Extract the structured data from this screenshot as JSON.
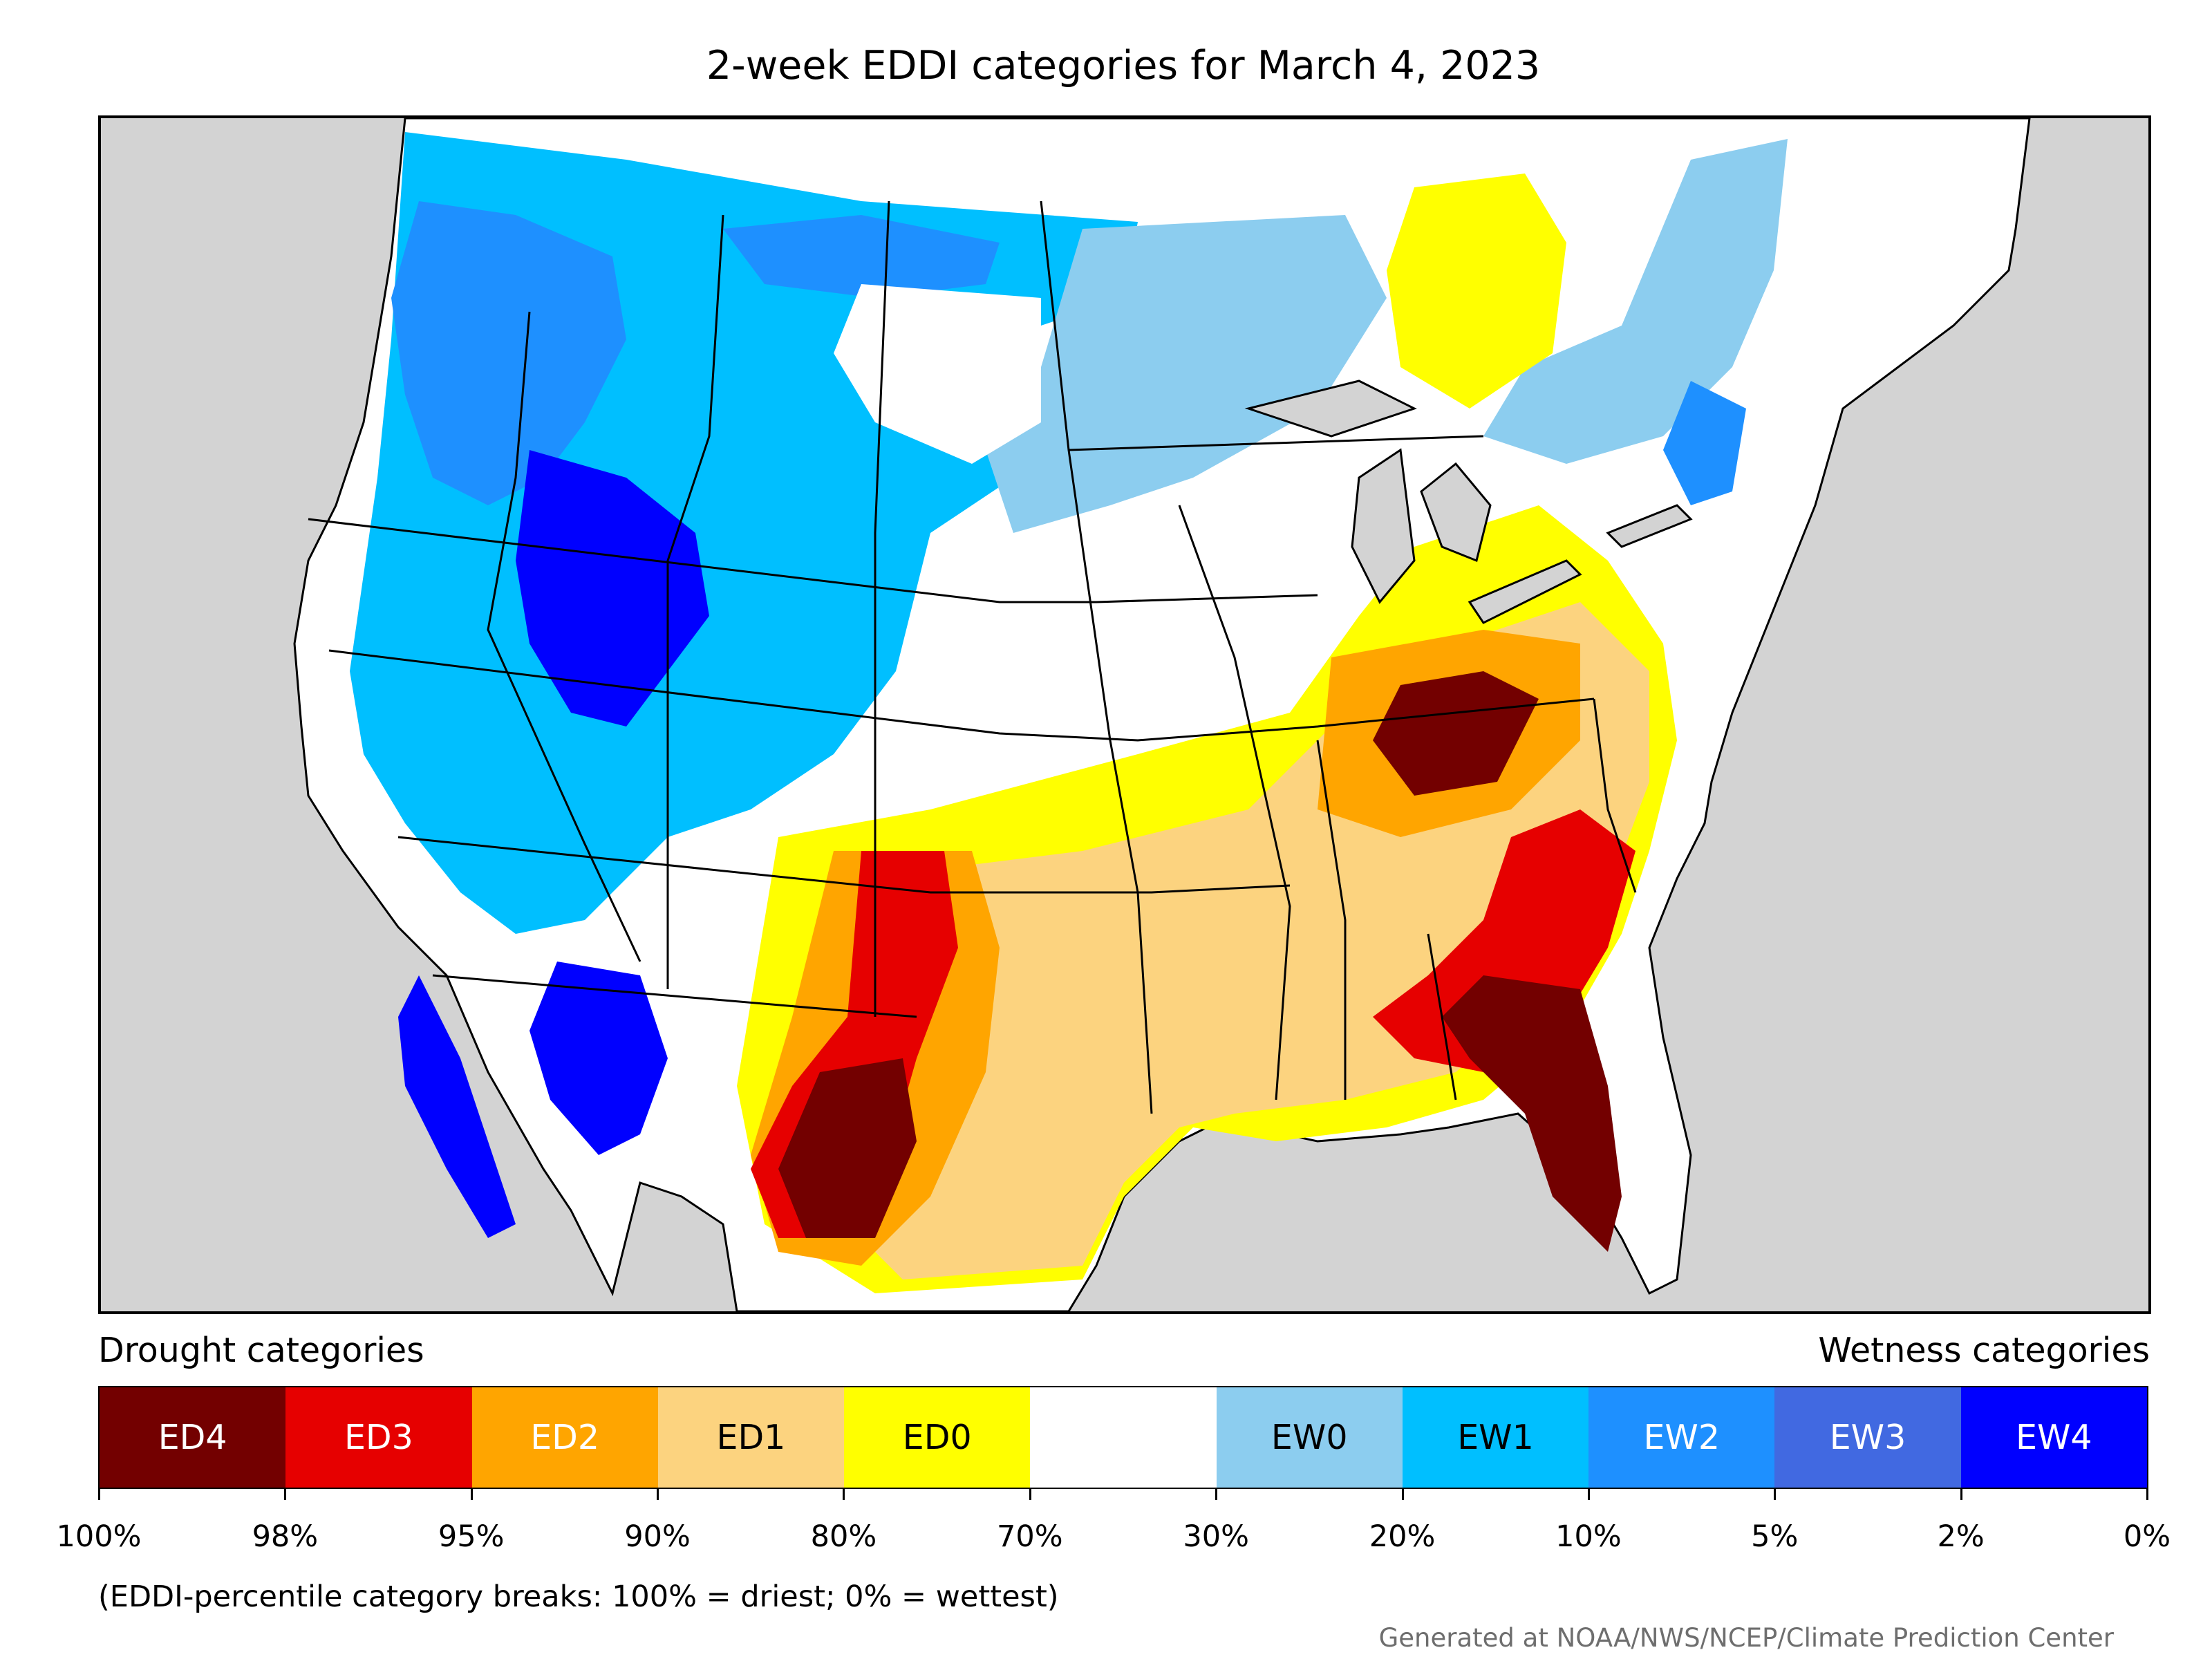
{
  "title": "2-week EDDI categories for March 4, 2023",
  "colors": {
    "ED4": "#730000",
    "ED3": "#e60000",
    "ED2": "#ffa500",
    "ED1": "#fcd37f",
    "ED0": "#ffff00",
    "neutral": "#ffffff",
    "EW0": "#8ccdef",
    "EW1": "#00bfff",
    "EW2": "#1e90ff",
    "EW3": "#4169e1",
    "EW4": "#0000ff",
    "land_outside": "#d3d3d3"
  },
  "legend": {
    "drought_header": "Drought categories",
    "wetness_header": "Wetness categories",
    "categories": [
      {
        "label": "ED4",
        "color": "#730000",
        "text_color": "#ffffff"
      },
      {
        "label": "ED3",
        "color": "#e60000",
        "text_color": "#ffffff"
      },
      {
        "label": "ED2",
        "color": "#ffa500",
        "text_color": "#ffffff"
      },
      {
        "label": "ED1",
        "color": "#fcd37f",
        "text_color": "#000000"
      },
      {
        "label": "ED0",
        "color": "#ffff00",
        "text_color": "#000000"
      },
      {
        "label": "",
        "color": "#ffffff",
        "text_color": "#000000"
      },
      {
        "label": "EW0",
        "color": "#8ccdef",
        "text_color": "#000000"
      },
      {
        "label": "EW1",
        "color": "#00bfff",
        "text_color": "#000000"
      },
      {
        "label": "EW2",
        "color": "#1e90ff",
        "text_color": "#ffffff"
      },
      {
        "label": "EW3",
        "color": "#4169e1",
        "text_color": "#ffffff"
      },
      {
        "label": "EW4",
        "color": "#0000ff",
        "text_color": "#ffffff"
      }
    ],
    "tick_labels": [
      "100%",
      "98%",
      "95%",
      "90%",
      "80%",
      "70%",
      "30%",
      "20%",
      "10%",
      "5%",
      "2%",
      "0%"
    ],
    "note": "(EDDI-percentile category breaks: 100% = driest; 0% = wettest)"
  },
  "credit": "Generated at NOAA/NWS/NCEP/Climate Prediction Center"
}
